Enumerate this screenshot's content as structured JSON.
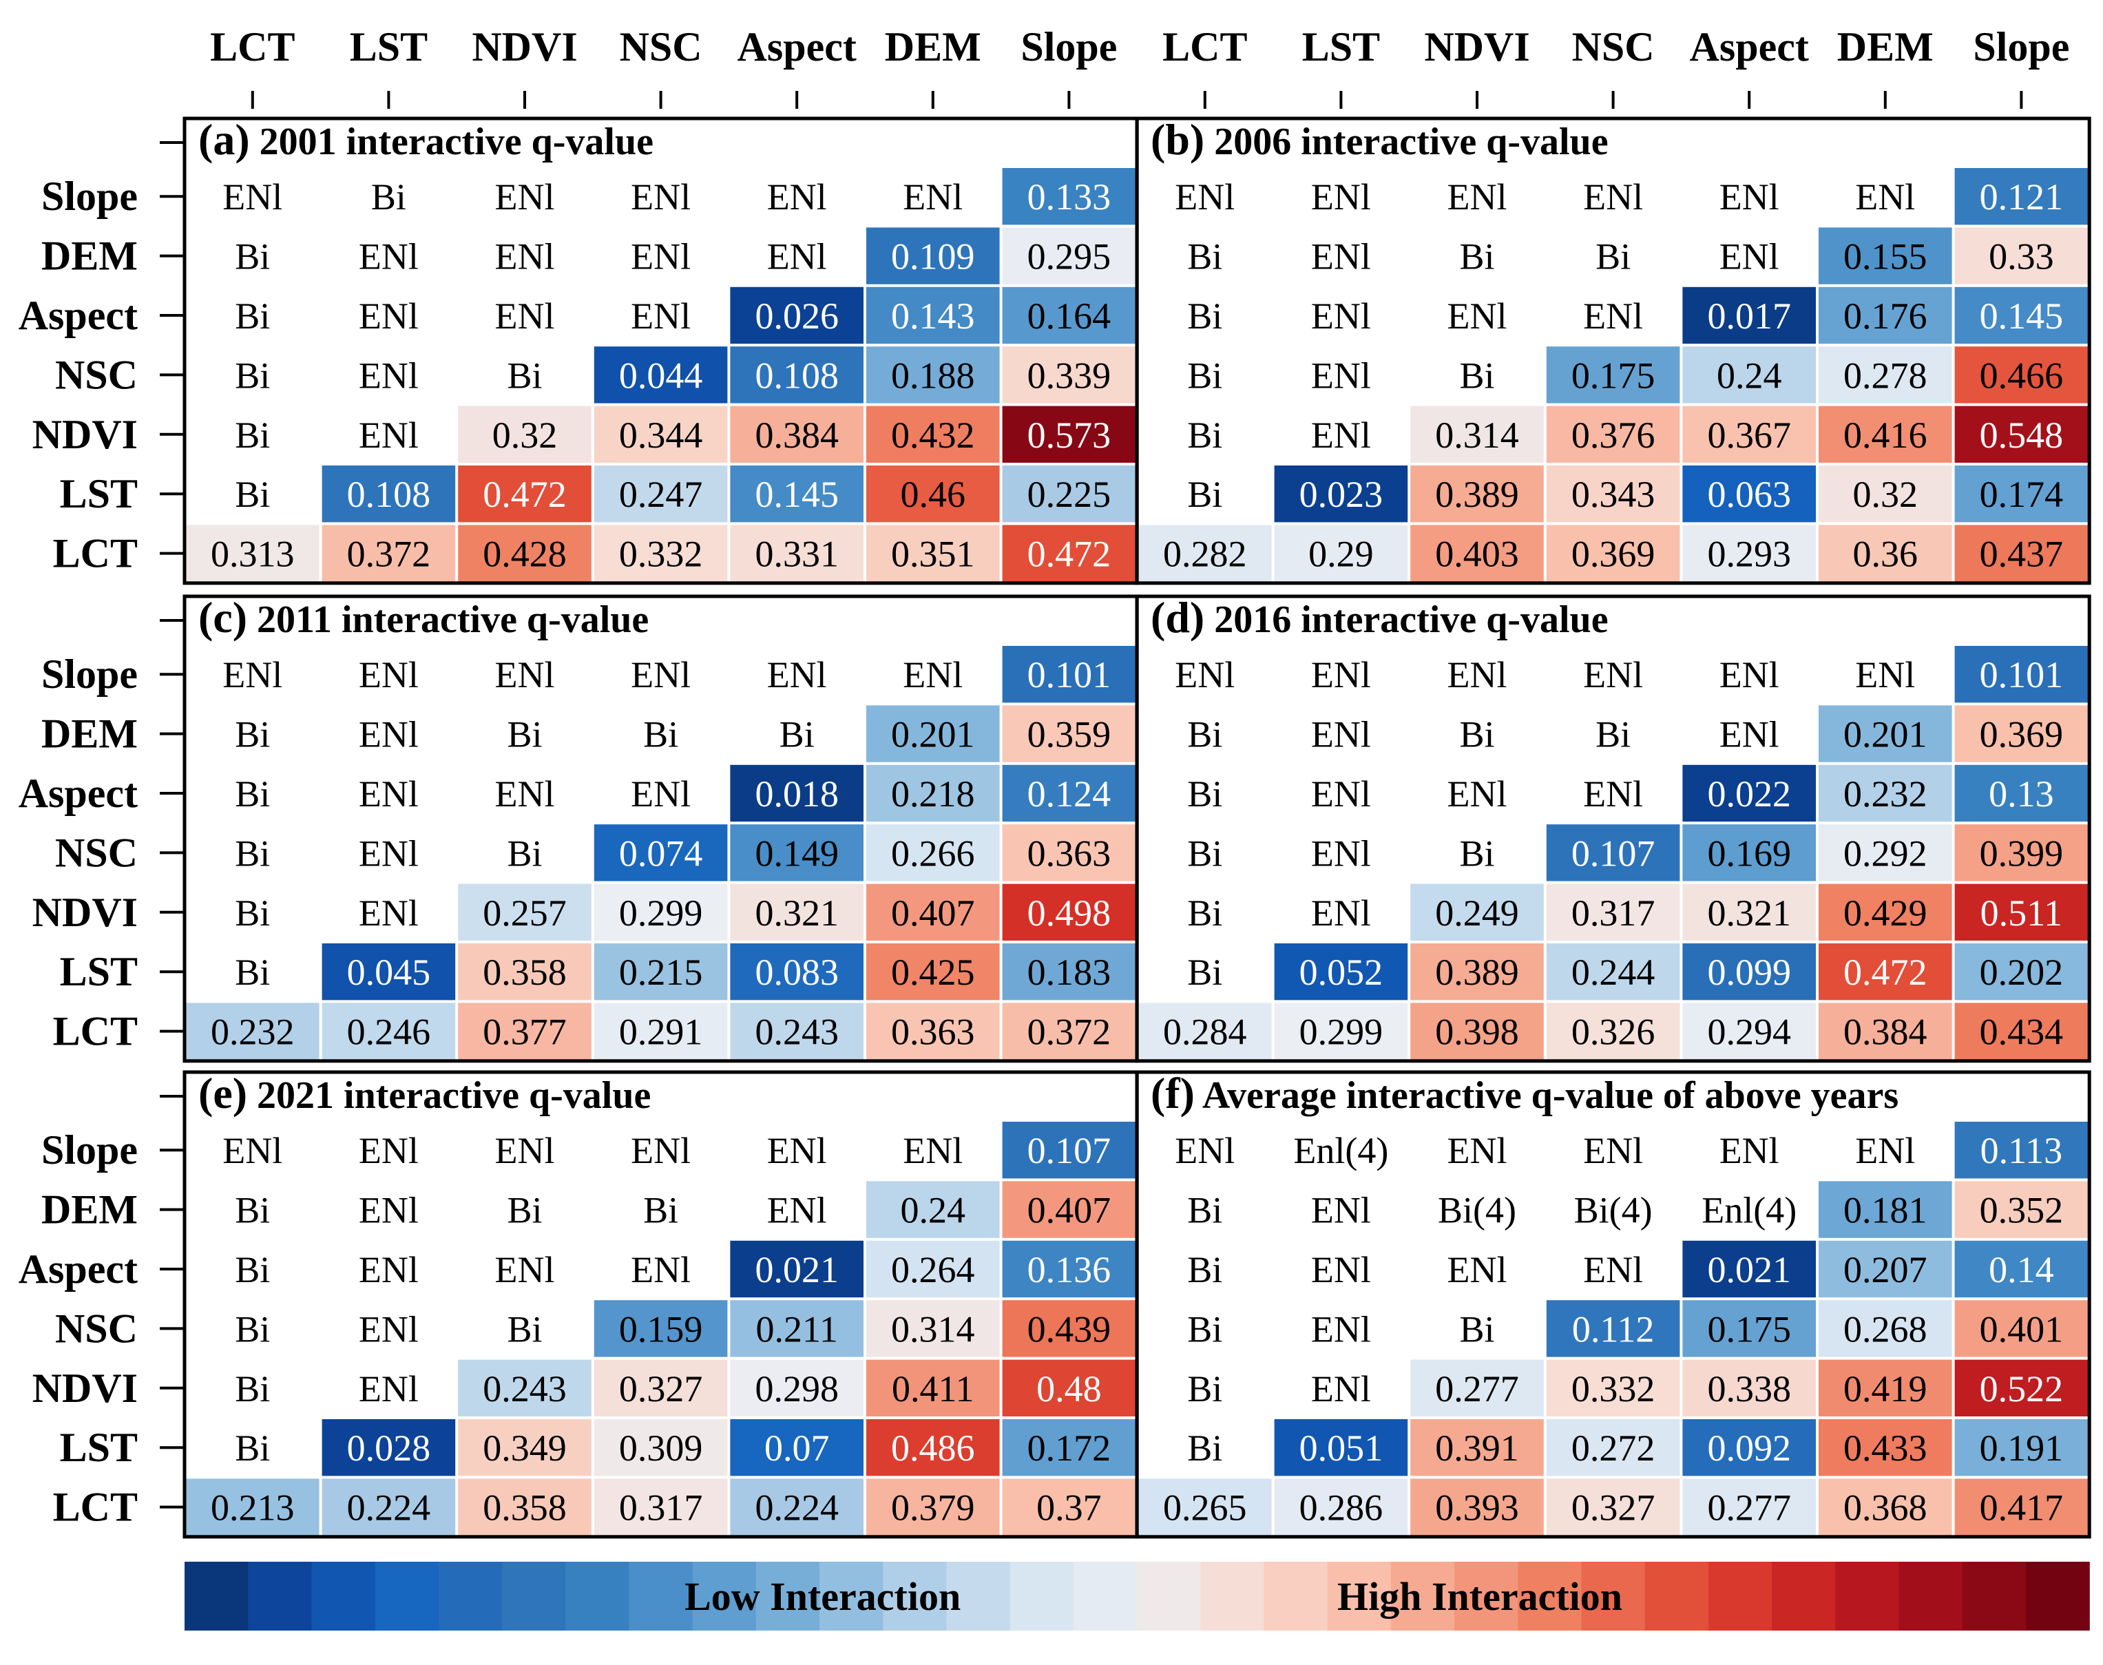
{
  "chart_data": {
    "type": "heatmap",
    "x_labels": [
      "LCT",
      "LST",
      "NDVI",
      "NSC",
      "Aspect",
      "DEM",
      "Slope"
    ],
    "y_labels": [
      "Slope",
      "DEM",
      "Aspect",
      "NSC",
      "NDVI",
      "LST",
      "LCT"
    ],
    "legend": {
      "low_label": "Low Interaction",
      "high_label": "High Interaction"
    },
    "colorscale": [
      "#08306b",
      "#0d47a1",
      "#1565c0",
      "#2a6fb8",
      "#3a83c2",
      "#5a9bcf",
      "#84b6dc",
      "#b4d1e8",
      "#d6e5f2",
      "#eceef3",
      "#f7dcd3",
      "#f9c2ae",
      "#f4a086",
      "#ef7c5e",
      "#e5543c",
      "#d42e26",
      "#b4141d",
      "#8f0a16",
      "#67000d"
    ],
    "color_range": [
      0,
      0.6
    ],
    "panels": [
      {
        "title": "(a) 2001 interactive q-value",
        "cells": [
          [
            "ENl",
            "Bi",
            "ENl",
            "ENl",
            "ENl",
            "ENl",
            0.133
          ],
          [
            "Bi",
            "ENl",
            "ENl",
            "ENl",
            "ENl",
            0.109,
            0.295
          ],
          [
            "Bi",
            "ENl",
            "ENl",
            "ENl",
            0.026,
            0.143,
            0.164
          ],
          [
            "Bi",
            "ENl",
            "Bi",
            0.044,
            0.108,
            0.188,
            0.339
          ],
          [
            "Bi",
            "ENl",
            0.32,
            0.344,
            0.384,
            0.432,
            0.573
          ],
          [
            "Bi",
            0.108,
            0.472,
            0.247,
            0.145,
            0.46,
            0.225
          ],
          [
            0.313,
            0.372,
            0.428,
            0.332,
            0.331,
            0.351,
            0.472
          ]
        ]
      },
      {
        "title": "(b) 2006 interactive q-value",
        "cells": [
          [
            "ENl",
            "ENl",
            "ENl",
            "ENl",
            "ENl",
            "ENl",
            0.121
          ],
          [
            "Bi",
            "ENl",
            "Bi",
            "Bi",
            "ENl",
            0.155,
            0.33
          ],
          [
            "Bi",
            "ENl",
            "ENl",
            "ENl",
            0.017,
            0.176,
            0.145
          ],
          [
            "Bi",
            "ENl",
            "Bi",
            0.175,
            0.24,
            0.278,
            0.466
          ],
          [
            "Bi",
            "ENl",
            0.314,
            0.376,
            0.367,
            0.416,
            0.548
          ],
          [
            "Bi",
            0.023,
            0.389,
            0.343,
            0.063,
            0.32,
            0.174
          ],
          [
            0.282,
            0.29,
            0.403,
            0.369,
            0.293,
            0.36,
            0.437
          ]
        ]
      },
      {
        "title": "(c) 2011 interactive q-value",
        "cells": [
          [
            "ENl",
            "ENl",
            "ENl",
            "ENl",
            "ENl",
            "ENl",
            0.101
          ],
          [
            "Bi",
            "ENl",
            "Bi",
            "Bi",
            "Bi",
            0.201,
            0.359
          ],
          [
            "Bi",
            "ENl",
            "ENl",
            "ENl",
            0.018,
            0.218,
            0.124
          ],
          [
            "Bi",
            "ENl",
            "Bi",
            0.074,
            0.149,
            0.266,
            0.363
          ],
          [
            "Bi",
            "ENl",
            0.257,
            0.299,
            0.321,
            0.407,
            0.498
          ],
          [
            "Bi",
            0.045,
            0.358,
            0.215,
            0.083,
            0.425,
            0.183
          ],
          [
            0.232,
            0.246,
            0.377,
            0.291,
            0.243,
            0.363,
            0.372
          ]
        ]
      },
      {
        "title": "(d) 2016 interactive q-value",
        "cells": [
          [
            "ENl",
            "ENl",
            "ENl",
            "ENl",
            "ENl",
            "ENl",
            0.101
          ],
          [
            "Bi",
            "ENl",
            "Bi",
            "Bi",
            "ENl",
            0.201,
            0.369
          ],
          [
            "Bi",
            "ENl",
            "ENl",
            "ENl",
            0.022,
            0.232,
            0.13
          ],
          [
            "Bi",
            "ENl",
            "Bi",
            0.107,
            0.169,
            0.292,
            0.399
          ],
          [
            "Bi",
            "ENl",
            0.249,
            0.317,
            0.321,
            0.429,
            0.511
          ],
          [
            "Bi",
            0.052,
            0.389,
            0.244,
            0.099,
            0.472,
            0.202
          ],
          [
            0.284,
            0.299,
            0.398,
            0.326,
            0.294,
            0.384,
            0.434
          ]
        ]
      },
      {
        "title": "(e) 2021 interactive q-value",
        "cells": [
          [
            "ENl",
            "ENl",
            "ENl",
            "ENl",
            "ENl",
            "ENl",
            0.107
          ],
          [
            "Bi",
            "ENl",
            "Bi",
            "Bi",
            "ENl",
            0.24,
            0.407
          ],
          [
            "Bi",
            "ENl",
            "ENl",
            "ENl",
            0.021,
            0.264,
            0.136
          ],
          [
            "Bi",
            "ENl",
            "Bi",
            0.159,
            0.211,
            0.314,
            0.439
          ],
          [
            "Bi",
            "ENl",
            0.243,
            0.327,
            0.298,
            0.411,
            0.48
          ],
          [
            "Bi",
            0.028,
            0.349,
            0.309,
            0.07,
            0.486,
            0.172
          ],
          [
            0.213,
            0.224,
            0.358,
            0.317,
            0.224,
            0.379,
            0.37
          ]
        ]
      },
      {
        "title": "(f) Average interactive q-value of above years",
        "cells": [
          [
            "ENl",
            "Enl(4)",
            "ENl",
            "ENl",
            "ENl",
            "ENl",
            0.113
          ],
          [
            "Bi",
            "ENl",
            "Bi(4)",
            "Bi(4)",
            "Enl(4)",
            0.181,
            0.352
          ],
          [
            "Bi",
            "ENl",
            "ENl",
            "ENl",
            0.021,
            0.207,
            0.14
          ],
          [
            "Bi",
            "ENl",
            "Bi",
            0.112,
            0.175,
            0.268,
            0.401
          ],
          [
            "Bi",
            "ENl",
            0.277,
            0.332,
            0.338,
            0.419,
            0.522
          ],
          [
            "Bi",
            0.051,
            0.391,
            0.272,
            0.092,
            0.433,
            0.191
          ],
          [
            0.265,
            0.286,
            0.393,
            0.327,
            0.277,
            0.368,
            0.417
          ]
        ]
      }
    ]
  }
}
